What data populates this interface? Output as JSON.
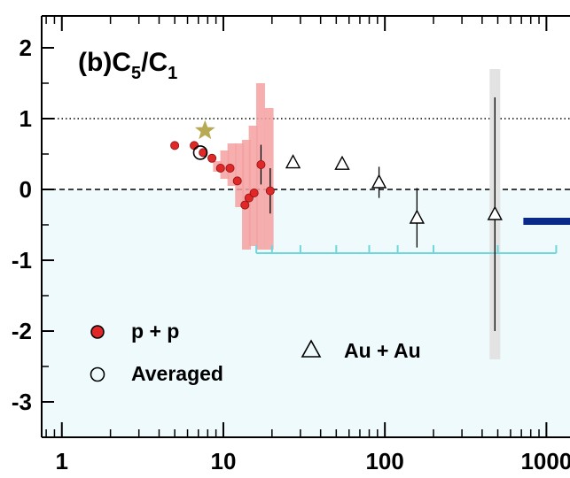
{
  "chart_data": {
    "type": "scatter",
    "title": {
      "main": "(b)C",
      "sub1": "5",
      "slash": "/C",
      "sub2": "1"
    },
    "xlabel": "",
    "ylabel": "",
    "x_scale": "log",
    "xlim": [
      0.75,
      1400
    ],
    "ylim": [
      -3.5,
      2.45
    ],
    "x_ticks": [
      1,
      10,
      100,
      1000
    ],
    "x_tick_labels": [
      "1",
      "10",
      "100",
      "1000"
    ],
    "y_ticks": [
      2,
      1,
      0,
      -1,
      -2,
      -3
    ],
    "y_tick_labels": [
      "2",
      "1",
      "0",
      "-1",
      "-2",
      "-3"
    ],
    "reference_lines": [
      {
        "y": 1,
        "style": "dotted"
      },
      {
        "y": 0,
        "style": "dashed"
      }
    ],
    "shaded_region": {
      "y_from": -3.5,
      "y_to": 0,
      "color": "#eefafc"
    },
    "colors": {
      "pp_marker": "#e02828",
      "pp_band": "#f5a0a0",
      "star": "#b8aa55",
      "blue_bar": "#0a2a8a",
      "cyan_line": "#6fd6dc",
      "gray_band": "#e3e3e3"
    },
    "series": [
      {
        "name": "p + p",
        "marker": "filled-circle",
        "points": [
          {
            "x": 5.0,
            "y": 0.62
          },
          {
            "x": 6.6,
            "y": 0.62
          },
          {
            "x": 7.5,
            "y": 0.52
          },
          {
            "x": 8.5,
            "y": 0.44
          },
          {
            "x": 9.6,
            "y": 0.3
          },
          {
            "x": 11.0,
            "y": 0.3
          },
          {
            "x": 12.2,
            "y": 0.12
          },
          {
            "x": 13.6,
            "y": -0.22
          },
          {
            "x": 14.4,
            "y": -0.12
          },
          {
            "x": 15.5,
            "y": -0.05
          },
          {
            "x": 17.1,
            "y": 0.35,
            "err": 0.28
          },
          {
            "x": 19.5,
            "y": -0.02,
            "err": 0.32
          }
        ],
        "sys_bands": [
          {
            "x": 9.2,
            "lo": 0.25,
            "hi": 0.4
          },
          {
            "x": 10.2,
            "lo": 0.15,
            "hi": 0.55
          },
          {
            "x": 11.3,
            "lo": 0.05,
            "hi": 0.65
          },
          {
            "x": 12.6,
            "lo": -0.25,
            "hi": 0.65
          },
          {
            "x": 13.9,
            "lo": -0.85,
            "hi": 0.7
          },
          {
            "x": 15.3,
            "lo": -0.8,
            "hi": 0.9
          },
          {
            "x": 17.0,
            "lo": -0.85,
            "hi": 1.5
          },
          {
            "x": 19.2,
            "lo": -0.85,
            "hi": 1.15
          }
        ]
      },
      {
        "name": "Averaged",
        "marker": "open-circle",
        "points": [
          {
            "x": 7.2,
            "y": 0.52
          }
        ]
      },
      {
        "name": "Au + Au",
        "marker": "open-triangle",
        "points": [
          {
            "x": 27,
            "y": 0.38
          },
          {
            "x": 54.4,
            "y": 0.36
          },
          {
            "x": 92,
            "y": 0.1,
            "err": 0.22
          },
          {
            "x": 158,
            "y": -0.4,
            "err": 0.42
          },
          {
            "x": 480,
            "y": -0.35,
            "err": 1.65,
            "sys_lo": -2.4,
            "sys_hi": 1.7
          }
        ]
      },
      {
        "marker": "star",
        "points": [
          {
            "x": 7.7,
            "y": 0.83
          }
        ]
      },
      {
        "marker": "horizontal-band",
        "points": [
          {
            "x_from": 720,
            "x_to": 1400,
            "y": -0.45
          }
        ]
      },
      {
        "marker": "bracket-line",
        "points": [
          {
            "x_from": 16,
            "x_to": 1150,
            "y": -0.9
          }
        ],
        "ticks_x": [
          16,
          20,
          30,
          50,
          80,
          120,
          200,
          500,
          1150
        ]
      }
    ],
    "legend": [
      "p + p",
      "Averaged",
      "Au + Au"
    ],
    "grid": false
  }
}
